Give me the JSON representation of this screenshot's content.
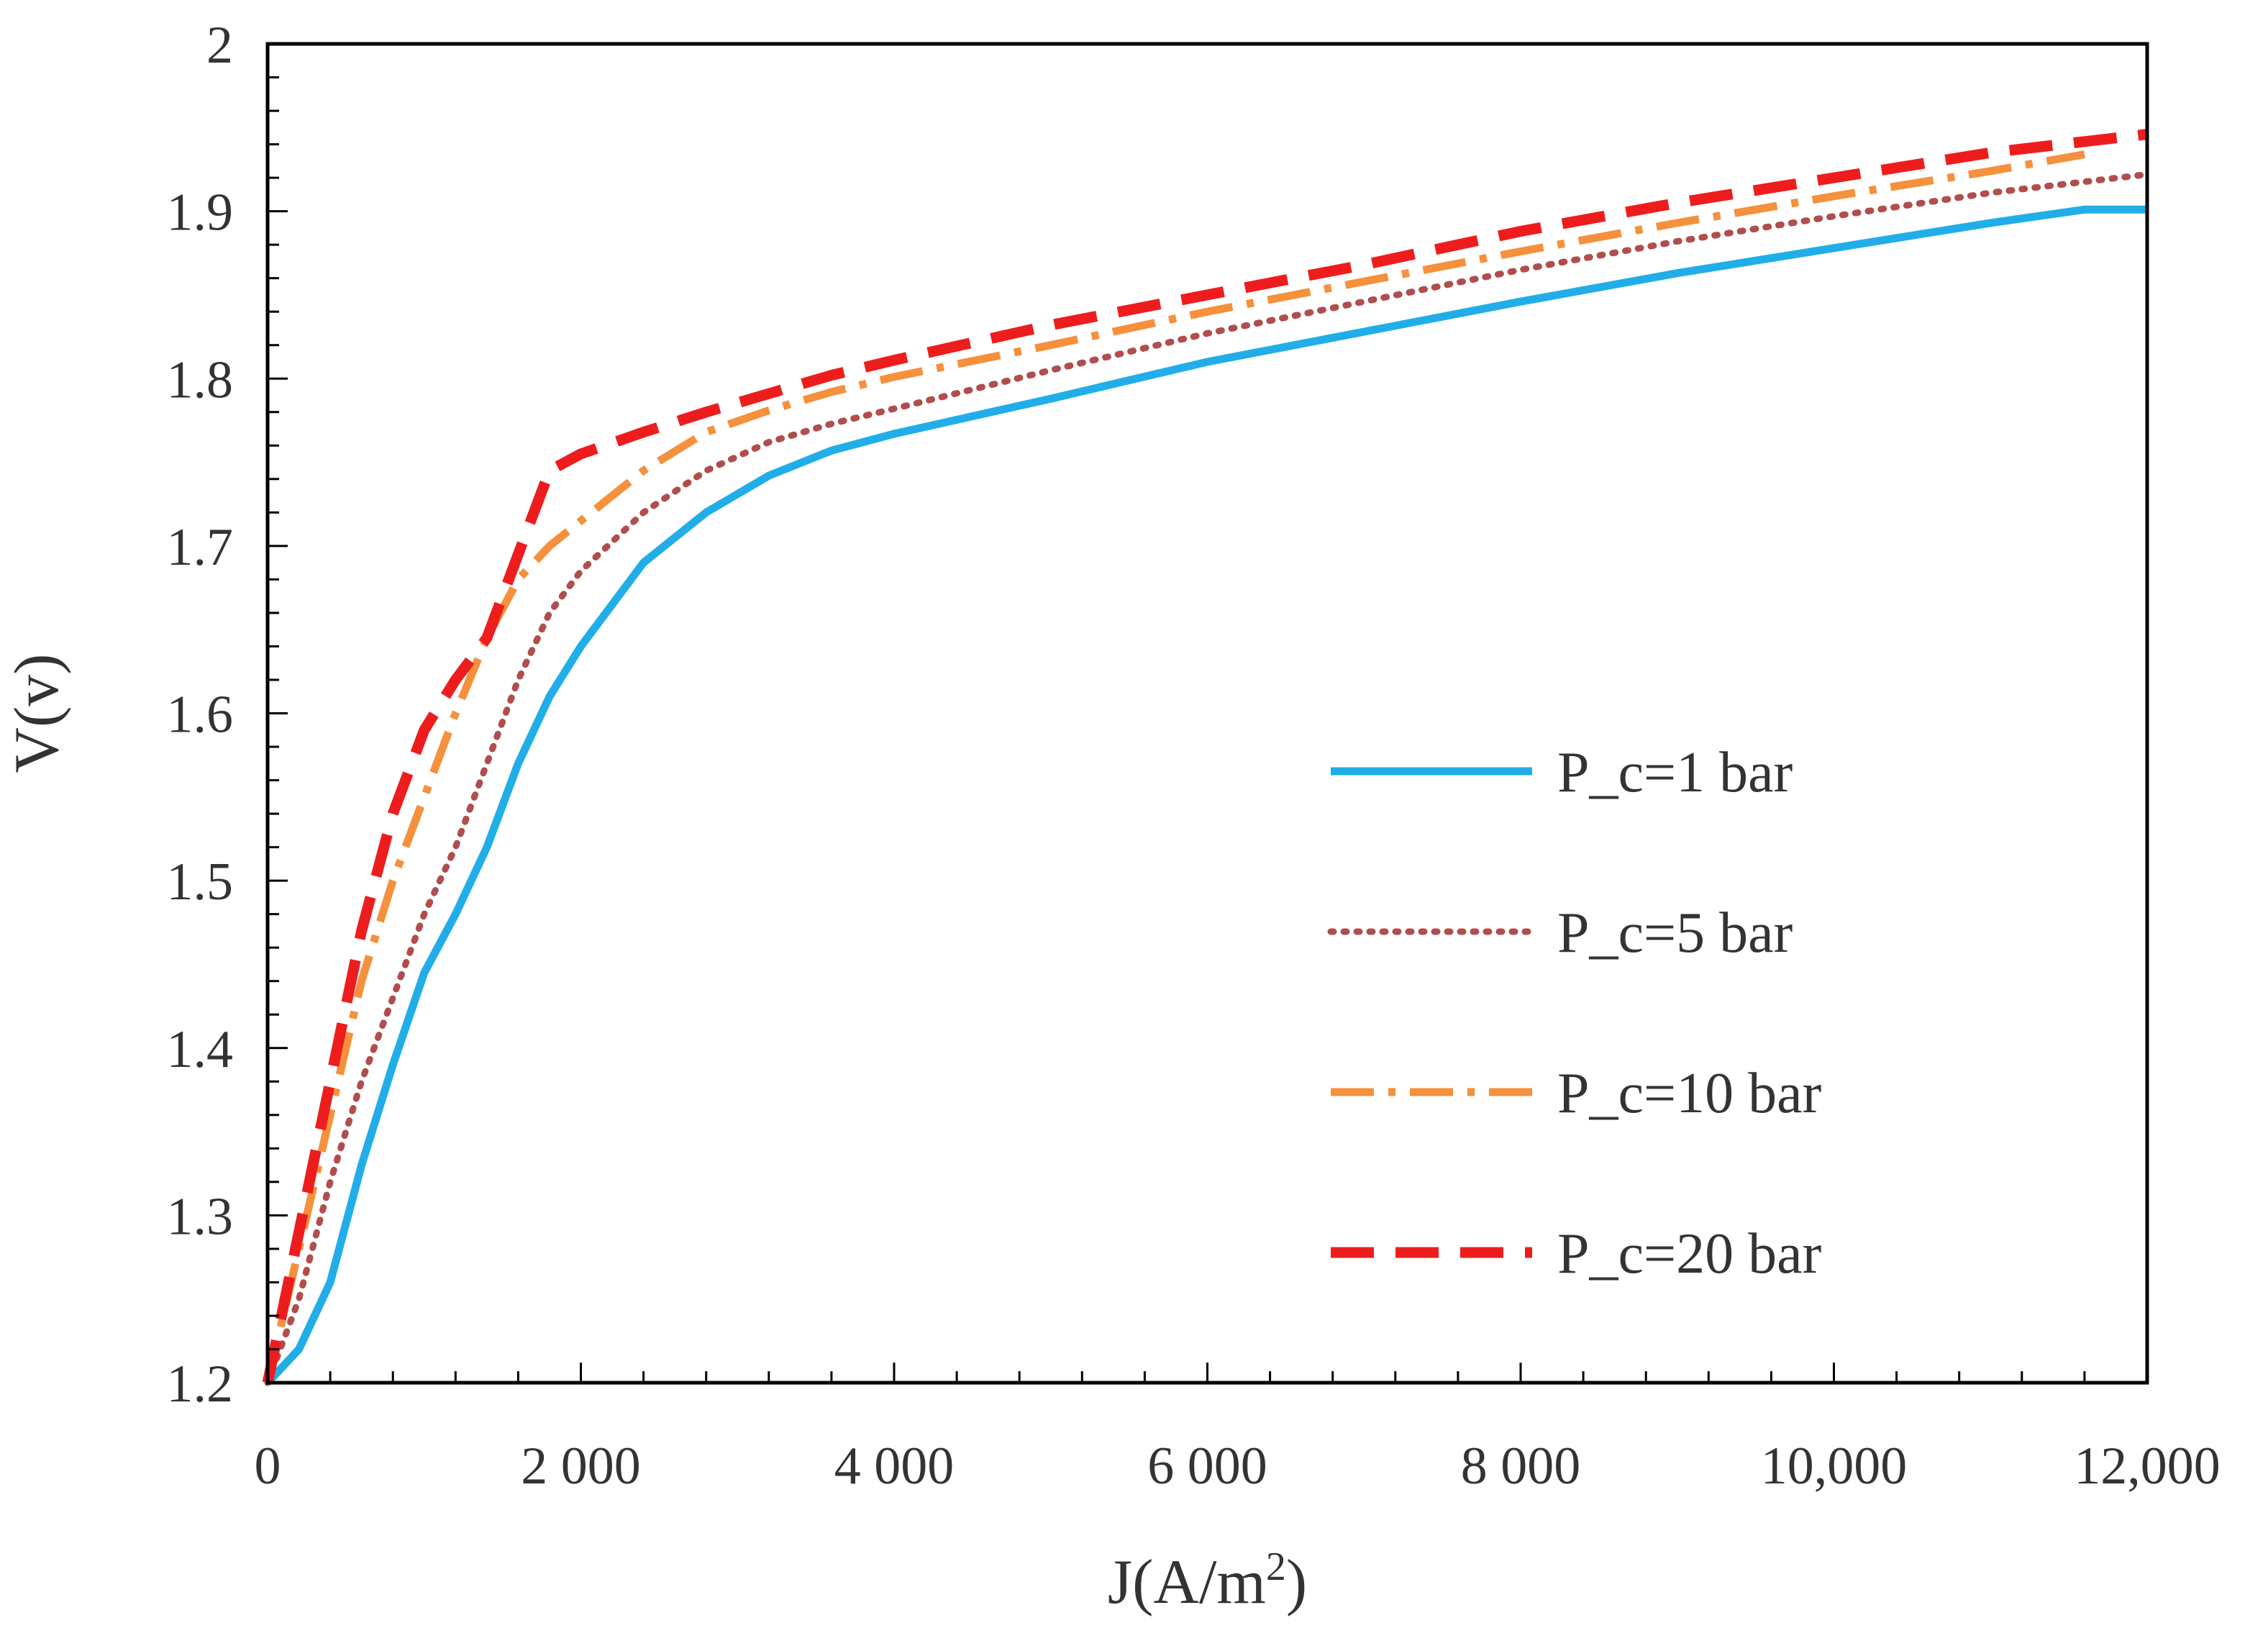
{
  "chart_data": {
    "type": "line",
    "title": "",
    "xlabel": "J(A/m",
    "xlabel_sup": "2",
    "xlabel_close": ")",
    "ylabel": "V(v)",
    "xlim": [
      0,
      12000
    ],
    "ylim": [
      1.2,
      2.0
    ],
    "x_ticks": [
      {
        "value": 0,
        "label": "0"
      },
      {
        "value": 2000,
        "label": "2 000"
      },
      {
        "value": 4000,
        "label": "4 000"
      },
      {
        "value": 6000,
        "label": "6 000"
      },
      {
        "value": 8000,
        "label": "8 000"
      },
      {
        "value": 10000,
        "label": "10,000"
      },
      {
        "value": 12000,
        "label": "12,000"
      }
    ],
    "y_ticks": [
      {
        "value": 1.2,
        "label": "1.2"
      },
      {
        "value": 1.3,
        "label": "1.3"
      },
      {
        "value": 1.4,
        "label": "1.4"
      },
      {
        "value": 1.5,
        "label": "1.5"
      },
      {
        "value": 1.6,
        "label": "1.6"
      },
      {
        "value": 1.7,
        "label": "1.7"
      },
      {
        "value": 1.8,
        "label": "1.8"
      },
      {
        "value": 1.9,
        "label": "1.9"
      },
      {
        "value": 2.0,
        "label": "2"
      }
    ],
    "grid": false,
    "legend_position": "right",
    "series": [
      {
        "name": "P_c=1 bar",
        "color": "#21aee8",
        "style": "solid",
        "x": [
          0,
          200,
          400,
          600,
          800,
          1000,
          1200,
          1400,
          1600,
          1800,
          2000,
          2400,
          2800,
          3200,
          3600,
          4000,
          5000,
          6000,
          7000,
          8000,
          9000,
          10000,
          11000,
          11600,
          12000
        ],
        "y": [
          1.2,
          1.22,
          1.26,
          1.33,
          1.39,
          1.445,
          1.48,
          1.52,
          1.57,
          1.61,
          1.64,
          1.69,
          1.72,
          1.742,
          1.757,
          1.767,
          1.788,
          1.81,
          1.828,
          1.846,
          1.863,
          1.878,
          1.893,
          1.901,
          1.901
        ]
      },
      {
        "name": "P_c=5 bar",
        "color": "#b04e4e",
        "style": "dotted",
        "x": [
          0,
          200,
          400,
          600,
          800,
          1000,
          1200,
          1400,
          1600,
          1800,
          2000,
          2400,
          2800,
          3200,
          3600,
          4000,
          5000,
          6000,
          7000,
          8000,
          9000,
          10000,
          11000,
          12000
        ],
        "y": [
          1.2,
          1.25,
          1.32,
          1.38,
          1.43,
          1.48,
          1.52,
          1.57,
          1.62,
          1.66,
          1.685,
          1.72,
          1.745,
          1.762,
          1.773,
          1.782,
          1.805,
          1.827,
          1.846,
          1.865,
          1.882,
          1.897,
          1.911,
          1.922
        ]
      },
      {
        "name": "P_c=10 bar",
        "color": "#f5903c",
        "style": "dash-dot",
        "x": [
          0,
          200,
          400,
          600,
          800,
          1000,
          1200,
          1400,
          1600,
          1800,
          2000,
          2400,
          2800,
          3200,
          3600,
          4000,
          5000,
          6000,
          7000,
          8000,
          9000,
          10000,
          11000,
          11600
        ],
        "y": [
          1.2,
          1.28,
          1.36,
          1.44,
          1.5,
          1.55,
          1.6,
          1.645,
          1.68,
          1.7,
          1.715,
          1.745,
          1.768,
          1.781,
          1.792,
          1.801,
          1.82,
          1.84,
          1.858,
          1.876,
          1.893,
          1.909,
          1.924,
          1.934
        ]
      },
      {
        "name": "P_c=20 bar",
        "color": "#ee1d1d",
        "style": "dashed",
        "x": [
          0,
          200,
          400,
          600,
          800,
          1000,
          1200,
          1400,
          1600,
          1800,
          2000,
          2400,
          2800,
          3200,
          3600,
          4000,
          5000,
          6000,
          7000,
          8000,
          9000,
          10000,
          11000,
          12000
        ],
        "y": [
          1.2,
          1.29,
          1.38,
          1.47,
          1.54,
          1.59,
          1.62,
          1.645,
          1.695,
          1.745,
          1.755,
          1.768,
          1.78,
          1.791,
          1.802,
          1.811,
          1.832,
          1.85,
          1.868,
          1.888,
          1.905,
          1.92,
          1.935,
          1.946
        ]
      }
    ]
  }
}
